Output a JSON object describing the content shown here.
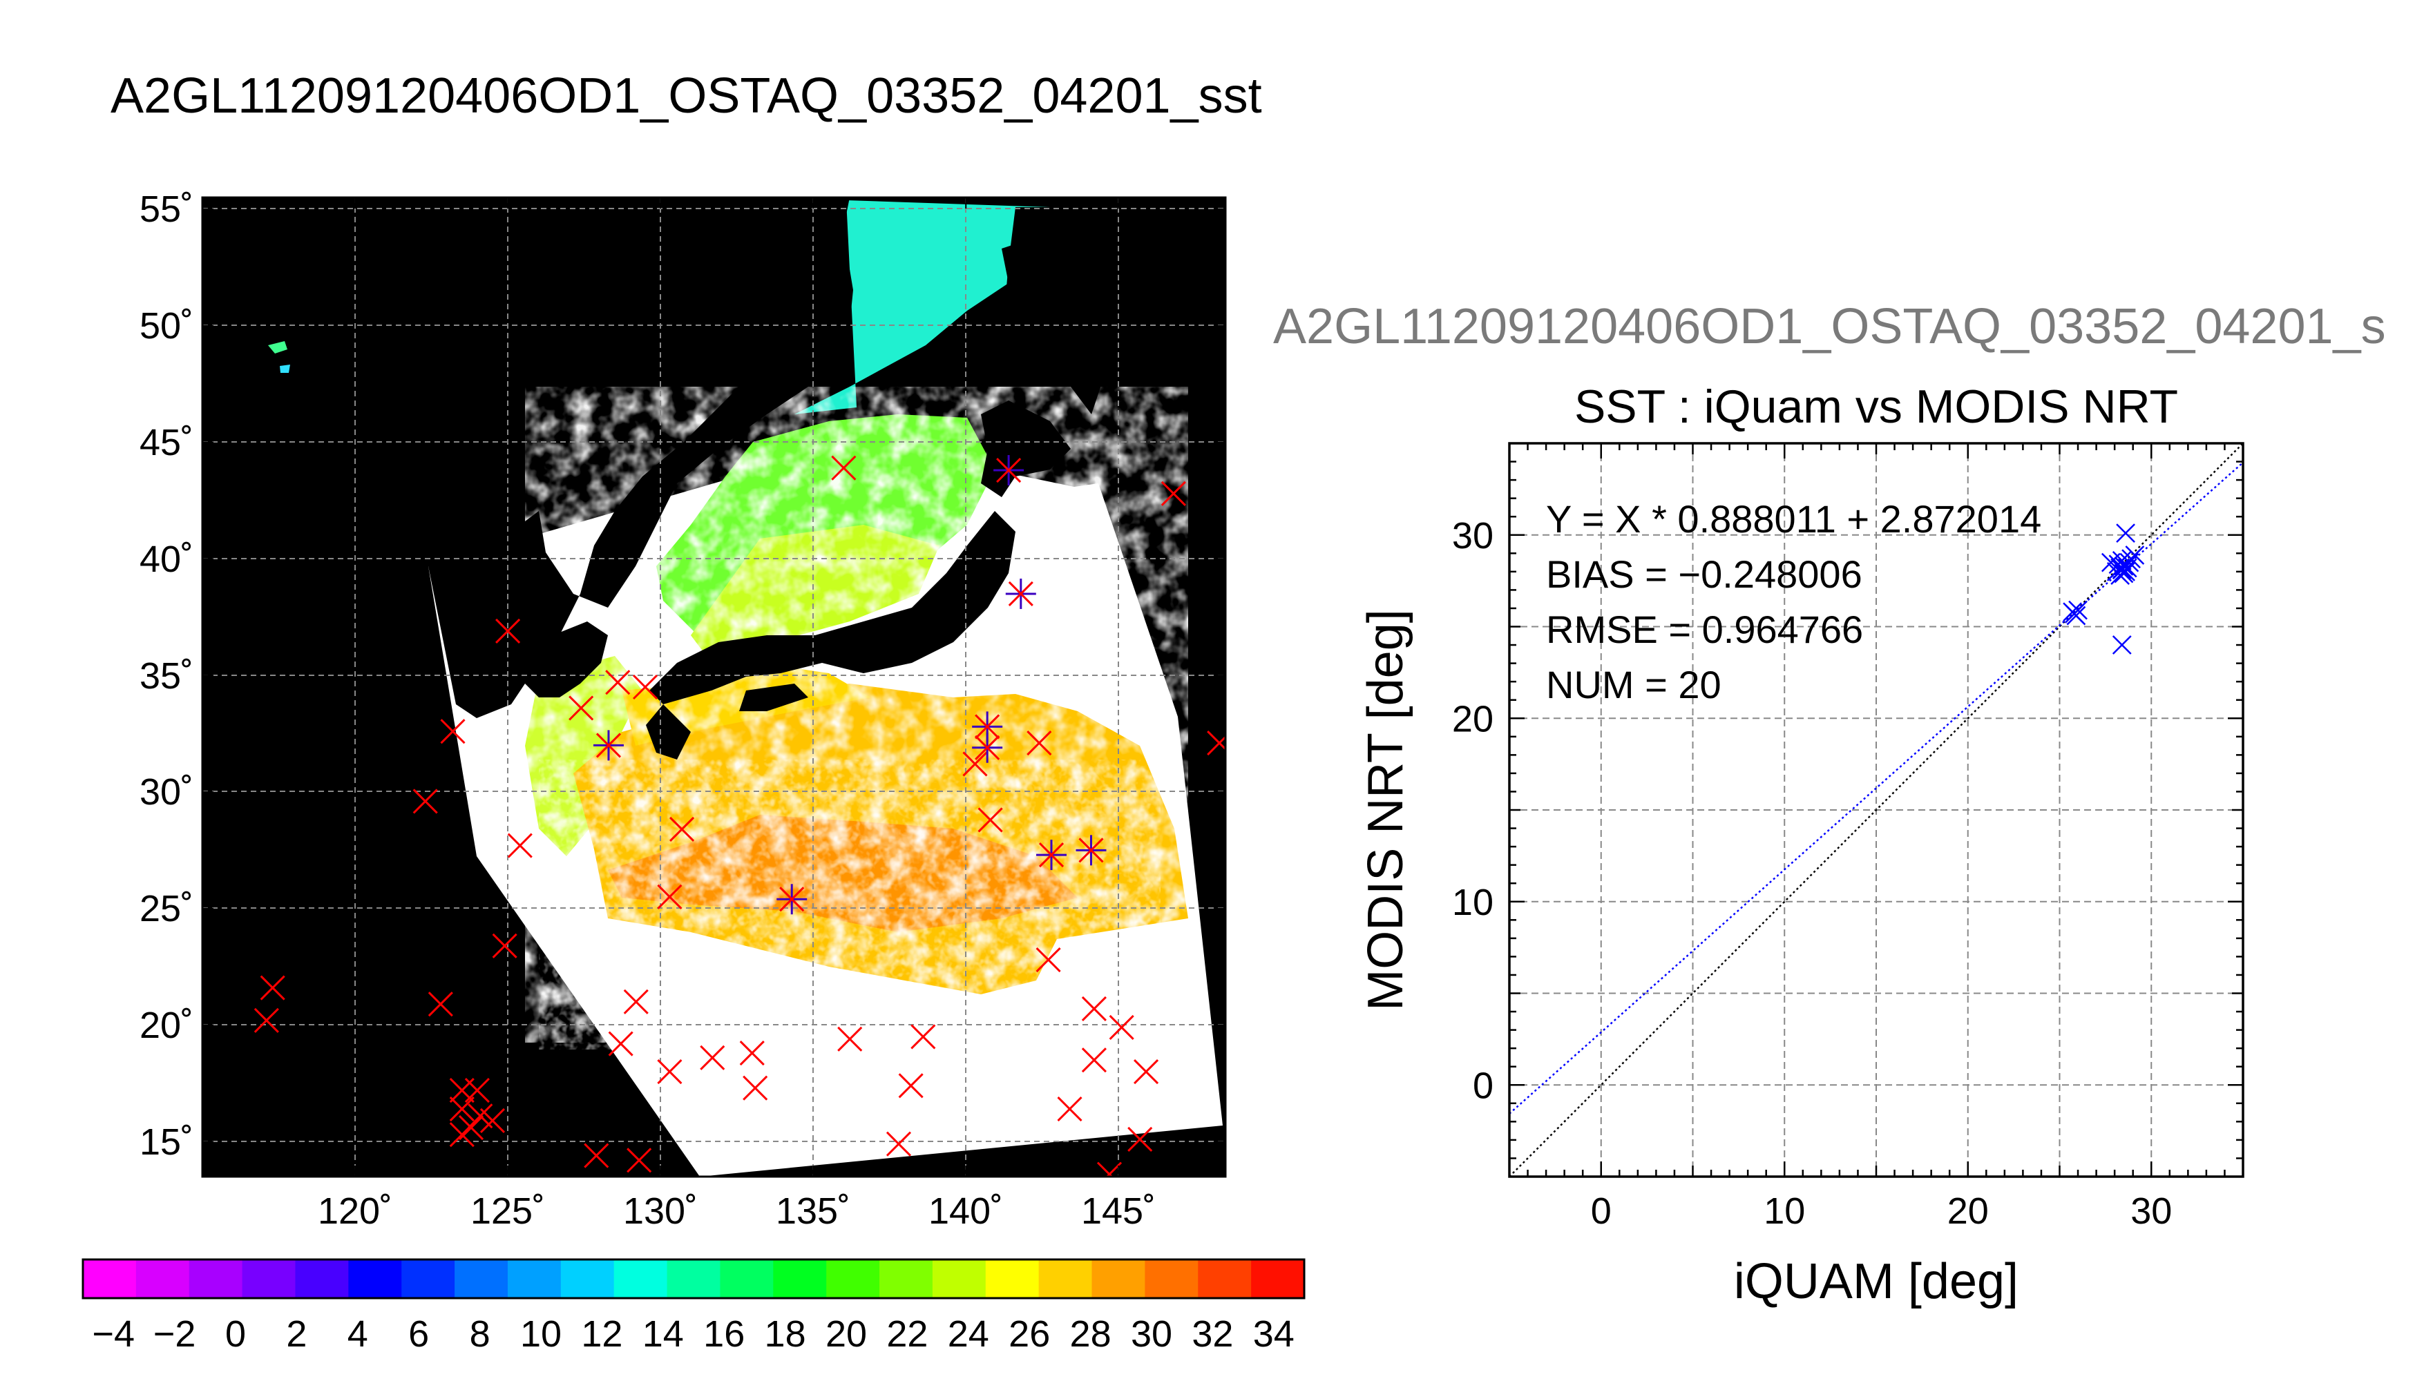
{
  "page_title": "A2GL11209120406OD1_OSTAQ_03352_04201_sst",
  "colorbar": {
    "tick_labels": [
      "−4",
      "−2",
      "0",
      "2",
      "4",
      "6",
      "8",
      "10",
      "12",
      "14",
      "16",
      "18",
      "20",
      "22",
      "24",
      "26",
      "28",
      "30",
      "32",
      "34"
    ],
    "colors": [
      "#ff00ff",
      "#d800ff",
      "#a800ff",
      "#7800ff",
      "#4800ff",
      "#0000ff",
      "#0030ff",
      "#0070ff",
      "#00a0ff",
      "#00d0ff",
      "#00ffe0",
      "#00ffa0",
      "#00ff60",
      "#00ff20",
      "#40ff00",
      "#80ff00",
      "#c0ff00",
      "#ffff00",
      "#ffd000",
      "#ffa000",
      "#ff7000",
      "#ff4000",
      "#ff1000"
    ]
  },
  "colors": {
    "land": "#000000",
    "no_data": "#ffffff",
    "match_marker": "#ff0000",
    "overlay_marker": "#3a00c0",
    "fit_line": "#0000ff",
    "identity_line": "#000000",
    "scatter_points": "#0000ff",
    "grid": "#808080"
  },
  "chart_data": [
    {
      "type": "map",
      "title": "A2GL11209120406OD1_OSTAQ_03352_04201_sst",
      "lon_labels": [
        "120˚",
        "125˚",
        "130˚",
        "135˚",
        "140˚",
        "145˚"
      ],
      "lat_labels": [
        "15˚",
        "20˚",
        "25˚",
        "30˚",
        "35˚",
        "40˚",
        "45˚",
        "50˚",
        "55˚"
      ],
      "lon_range": [
        115.0,
        148.5
      ],
      "lat_range": [
        13.5,
        55.5
      ],
      "lon_ticks": [
        120,
        125,
        130,
        135,
        140,
        145
      ],
      "lat_ticks": [
        15,
        20,
        25,
        30,
        35,
        40,
        45,
        50,
        55
      ],
      "grid": true,
      "iquam_points_lon_lat": [
        [
          117.3,
          21.6
        ],
        [
          117.1,
          20.2
        ],
        [
          122.3,
          29.6
        ],
        [
          122.8,
          20.9
        ],
        [
          123.2,
          32.6
        ],
        [
          125.0,
          36.9
        ],
        [
          125.4,
          27.7
        ],
        [
          124.9,
          23.4
        ],
        [
          123.5,
          17.2
        ],
        [
          124.0,
          17.2
        ],
        [
          123.5,
          16.4
        ],
        [
          124.1,
          16.1
        ],
        [
          123.8,
          15.6
        ],
        [
          123.5,
          15.3
        ],
        [
          124.5,
          15.9
        ],
        [
          127.9,
          14.4
        ],
        [
          129.3,
          14.2
        ],
        [
          128.7,
          19.2
        ],
        [
          129.2,
          21.0
        ],
        [
          130.3,
          18.0
        ],
        [
          131.7,
          18.6
        ],
        [
          133.0,
          18.8
        ],
        [
          133.1,
          17.3
        ],
        [
          136.2,
          19.4
        ],
        [
          137.8,
          14.9
        ],
        [
          138.2,
          17.4
        ],
        [
          138.6,
          19.5
        ],
        [
          142.7,
          22.8
        ],
        [
          144.2,
          20.7
        ],
        [
          145.1,
          19.9
        ],
        [
          144.2,
          18.5
        ],
        [
          145.9,
          18.0
        ],
        [
          143.4,
          16.4
        ],
        [
          145.7,
          15.1
        ],
        [
          144.7,
          13.6
        ],
        [
          146.8,
          42.8
        ],
        [
          148.3,
          32.1
        ],
        [
          142.4,
          32.1
        ],
        [
          140.8,
          28.8
        ],
        [
          130.7,
          28.4
        ],
        [
          130.3,
          25.5
        ],
        [
          140.3,
          31.2
        ],
        [
          136.0,
          43.9
        ],
        [
          127.4,
          33.6
        ],
        [
          128.6,
          34.7
        ],
        [
          129.5,
          34.5
        ]
      ],
      "overlay_points_lon_lat": [
        [
          141.4,
          43.8
        ],
        [
          141.8,
          38.5
        ],
        [
          128.3,
          32.0
        ],
        [
          140.7,
          32.8
        ],
        [
          140.7,
          31.9
        ],
        [
          134.3,
          25.4
        ],
        [
          142.8,
          27.3
        ],
        [
          144.1,
          27.5
        ]
      ]
    },
    {
      "type": "scatter",
      "header": "A2GL11209120406OD1_OSTAQ_03352_04201_s",
      "title": "SST : iQuam vs MODIS NRT",
      "xlabel": "iQUAM [deg]",
      "ylabel": "MODIS NRT [deg]",
      "xlim": [
        -5,
        35
      ],
      "ylim": [
        -5,
        35
      ],
      "x_ticks": [
        0,
        10,
        20,
        30
      ],
      "y_ticks": [
        0,
        10,
        20,
        30
      ],
      "x_tick_labels": [
        "0",
        "10",
        "20",
        "30"
      ],
      "y_tick_labels": [
        "0",
        "10",
        "20",
        "30"
      ],
      "grid": true,
      "stats": [
        "Y = X * 0.888011 + 2.872014",
        "BIAS = −0.248006",
        "RMSE = 0.964766",
        "NUM = 20"
      ],
      "fit": {
        "slope": 0.888011,
        "intercept": 2.872014
      },
      "points": [
        [
          25.7,
          25.8
        ],
        [
          25.9,
          25.6
        ],
        [
          25.8,
          25.7
        ],
        [
          26.0,
          25.9
        ],
        [
          27.8,
          28.5
        ],
        [
          28.1,
          28.0
        ],
        [
          28.3,
          27.8
        ],
        [
          28.4,
          28.1
        ],
        [
          28.5,
          28.3
        ],
        [
          28.6,
          28.0
        ],
        [
          28.4,
          28.6
        ],
        [
          28.7,
          28.2
        ],
        [
          28.9,
          28.7
        ],
        [
          29.1,
          28.9
        ],
        [
          28.6,
          30.1
        ],
        [
          28.4,
          24.0
        ],
        [
          28.2,
          28.4
        ],
        [
          28.8,
          28.5
        ],
        [
          28.5,
          27.9
        ],
        [
          28.3,
          28.2
        ]
      ]
    }
  ]
}
